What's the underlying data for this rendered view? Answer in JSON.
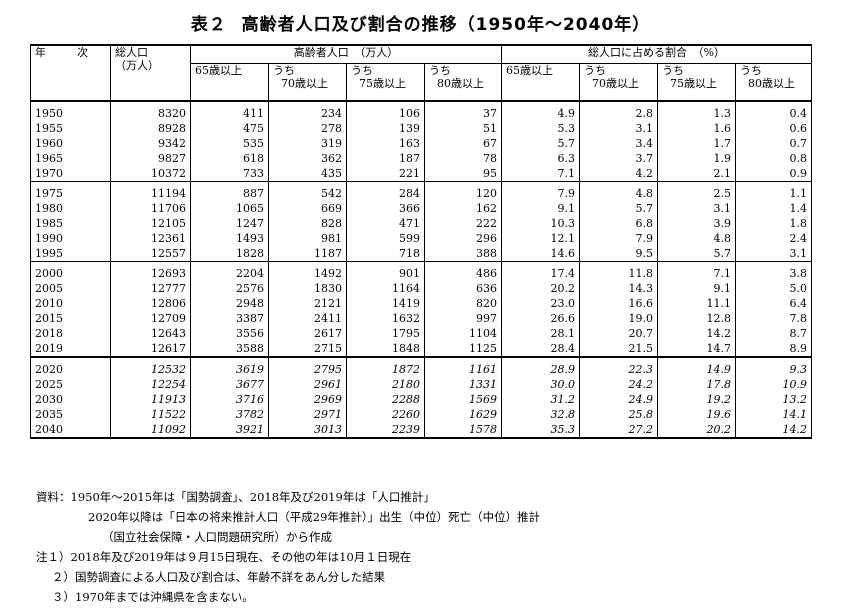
{
  "title": {
    "table_label": "表２",
    "text": "高齢者人口及び割合の推移（1950年～2040年）"
  },
  "headers": {
    "year": "年　次",
    "total_pop": [
      "総人口",
      "（万人）"
    ],
    "elderly_pop_group": "高齢者人口　（万人）",
    "ratio_group": "総人口に占める割合　（%）",
    "sub": [
      [
        "65歳以上",
        ""
      ],
      [
        "うち",
        "70歳以上"
      ],
      [
        "うち",
        "75歳以上"
      ],
      [
        "うち",
        "80歳以上"
      ],
      [
        "65歳以上",
        ""
      ],
      [
        "うち",
        "70歳以上"
      ],
      [
        "うち",
        "75歳以上"
      ],
      [
        "うち",
        "80歳以上"
      ]
    ]
  },
  "rows": [
    [
      "1950",
      "8320",
      "411",
      "234",
      "106",
      "37",
      "4.9",
      "2.8",
      "1.3",
      "0.4"
    ],
    [
      "1955",
      "8928",
      "475",
      "278",
      "139",
      "51",
      "5.3",
      "3.1",
      "1.6",
      "0.6"
    ],
    [
      "1960",
      "9342",
      "535",
      "319",
      "163",
      "67",
      "5.7",
      "3.4",
      "1.7",
      "0.7"
    ],
    [
      "1965",
      "9827",
      "618",
      "362",
      "187",
      "78",
      "6.3",
      "3.7",
      "1.9",
      "0.8"
    ],
    [
      "1970",
      "10372",
      "733",
      "435",
      "221",
      "95",
      "7.1",
      "4.2",
      "2.1",
      "0.9"
    ],
    [
      "1975",
      "11194",
      "887",
      "542",
      "284",
      "120",
      "7.9",
      "4.8",
      "2.5",
      "1.1"
    ],
    [
      "1980",
      "11706",
      "1065",
      "669",
      "366",
      "162",
      "9.1",
      "5.7",
      "3.1",
      "1.4"
    ],
    [
      "1985",
      "12105",
      "1247",
      "828",
      "471",
      "222",
      "10.3",
      "6.8",
      "3.9",
      "1.8"
    ],
    [
      "1990",
      "12361",
      "1493",
      "981",
      "599",
      "296",
      "12.1",
      "7.9",
      "4.8",
      "2.4"
    ],
    [
      "1995",
      "12557",
      "1828",
      "1187",
      "718",
      "388",
      "14.6",
      "9.5",
      "5.7",
      "3.1"
    ],
    [
      "2000",
      "12693",
      "2204",
      "1492",
      "901",
      "486",
      "17.4",
      "11.8",
      "7.1",
      "3.8"
    ],
    [
      "2005",
      "12777",
      "2576",
      "1830",
      "1164",
      "636",
      "20.2",
      "14.3",
      "9.1",
      "5.0"
    ],
    [
      "2010",
      "12806",
      "2948",
      "2121",
      "1419",
      "820",
      "23.0",
      "16.6",
      "11.1",
      "6.4"
    ],
    [
      "2015",
      "12709",
      "3387",
      "2411",
      "1632",
      "997",
      "26.6",
      "19.0",
      "12.8",
      "7.8"
    ],
    [
      "2018",
      "12643",
      "3556",
      "2617",
      "1795",
      "1104",
      "28.1",
      "20.7",
      "14.2",
      "8.7"
    ],
    [
      "2019",
      "12617",
      "3588",
      "2715",
      "1848",
      "1125",
      "28.4",
      "21.5",
      "14.7",
      "8.9"
    ],
    [
      "2020",
      "12532",
      "3619",
      "2795",
      "1872",
      "1161",
      "28.9",
      "22.3",
      "14.9",
      "9.3"
    ],
    [
      "2025",
      "12254",
      "3677",
      "2961",
      "2180",
      "1331",
      "30.0",
      "24.2",
      "17.8",
      "10.9"
    ],
    [
      "2030",
      "11913",
      "3716",
      "2969",
      "2288",
      "1569",
      "31.2",
      "24.9",
      "19.2",
      "13.2"
    ],
    [
      "2035",
      "11522",
      "3782",
      "2971",
      "2260",
      "1629",
      "32.8",
      "25.8",
      "19.6",
      "14.1"
    ],
    [
      "2040",
      "11092",
      "3921",
      "3013",
      "2239",
      "1578",
      "35.3",
      "27.2",
      "20.2",
      "14.2"
    ]
  ],
  "notes": [
    "資料：1950年～2015年は「国勢調査」、2018年及び2019年は「人口推計」",
    "2020年以降は「日本の将来推計人口（平成29年推計）」出生（中位）死亡（中位）推計",
    "（国立社会保障・人口問題研究所）から作成",
    "注１）2018年及び2019年は９月15日現在、その他の年は10月１日現在",
    "２）国勢調査による人口及び割合は、年齢不詳をあん分した結果",
    "３）1970年までは沖縄県を含まない。"
  ]
}
